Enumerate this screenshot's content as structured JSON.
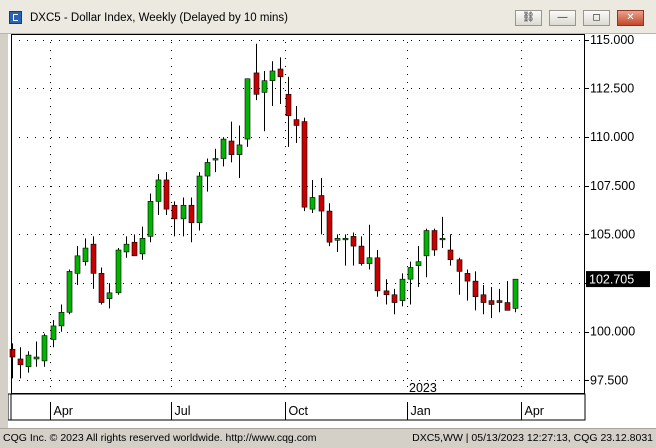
{
  "window": {
    "title": "DXC5 - Dollar Index, Weekly (Delayed by 10 mins)",
    "buttons": {
      "link": "⛓",
      "minimize": "—",
      "restore": "◻",
      "close": "✕"
    }
  },
  "status": {
    "left": "CQG Inc. © 2023 All rights reserved worldwide. http://www.cqg.com",
    "right": "DXC5,WW | 05/13/2023 12:27:13, CQG 23.12.8031"
  },
  "colors": {
    "up": "#00b400",
    "down": "#c80000",
    "doji": "#00b400",
    "grid": "#000000"
  },
  "chart_data": {
    "type": "candlestick",
    "symbol": "DXC5",
    "interval": "Weekly",
    "yticks": [
      97.5,
      100,
      102.5,
      105,
      107.5,
      110,
      112.5,
      115
    ],
    "ytick_labels": [
      "97.500",
      "100.000",
      "102.500",
      "105.000",
      "107.500",
      "110.000",
      "112.500",
      "115.000"
    ],
    "ylim": [
      96.8,
      115.3
    ],
    "xlabels": [
      {
        "index": 5,
        "label": "Apr"
      },
      {
        "index": 20,
        "label": "Jul"
      },
      {
        "index": 34,
        "label": "Oct"
      },
      {
        "index": 49,
        "label": "Jan"
      },
      {
        "index": 63,
        "label": "Apr"
      }
    ],
    "year_label": {
      "index": 49,
      "label": "2023"
    },
    "last_price": 102.705,
    "last_price_label": "102.705",
    "candles": [
      [
        99.1,
        99.4,
        97.6,
        98.7
      ],
      [
        98.6,
        99.2,
        97.6,
        98.3
      ],
      [
        98.2,
        99.0,
        97.9,
        98.8
      ],
      [
        98.6,
        99.5,
        98.2,
        98.7
      ],
      [
        98.5,
        99.9,
        98.2,
        99.8
      ],
      [
        99.6,
        100.6,
        99.2,
        100.3
      ],
      [
        100.3,
        101.4,
        100.0,
        101.0
      ],
      [
        101.0,
        103.2,
        100.9,
        103.1
      ],
      [
        103.0,
        104.4,
        102.4,
        103.9
      ],
      [
        103.6,
        104.8,
        103.4,
        104.3
      ],
      [
        104.5,
        104.9,
        102.2,
        103.0
      ],
      [
        103.0,
        103.3,
        101.4,
        101.5
      ],
      [
        101.7,
        102.5,
        101.2,
        102.0
      ],
      [
        102.0,
        104.3,
        101.9,
        104.2
      ],
      [
        104.1,
        104.9,
        103.8,
        104.5
      ],
      [
        104.6,
        105.0,
        103.9,
        103.9
      ],
      [
        104.0,
        105.4,
        103.7,
        104.8
      ],
      [
        104.9,
        107.1,
        104.6,
        106.7
      ],
      [
        106.7,
        108.1,
        106.0,
        107.8
      ],
      [
        107.8,
        108.2,
        106.0,
        106.3
      ],
      [
        106.5,
        106.7,
        104.9,
        105.8
      ],
      [
        105.8,
        106.9,
        104.9,
        106.5
      ],
      [
        106.5,
        106.9,
        104.6,
        105.6
      ],
      [
        105.6,
        108.2,
        105.2,
        108.0
      ],
      [
        108.0,
        108.9,
        107.2,
        108.7
      ],
      [
        108.9,
        109.4,
        108.2,
        108.9
      ],
      [
        108.9,
        110.0,
        108.5,
        109.9
      ],
      [
        109.8,
        110.8,
        108.7,
        109.1
      ],
      [
        109.1,
        110.6,
        107.9,
        109.6
      ],
      [
        109.9,
        112.9,
        109.5,
        113.0
      ],
      [
        113.3,
        114.8,
        111.9,
        112.2
      ],
      [
        112.3,
        113.4,
        110.3,
        112.9
      ],
      [
        112.9,
        113.9,
        111.6,
        113.4
      ],
      [
        113.5,
        114.1,
        111.7,
        113.1
      ],
      [
        112.2,
        113.1,
        109.5,
        111.1
      ],
      [
        110.9,
        111.6,
        109.7,
        110.6
      ],
      [
        110.8,
        111.0,
        106.2,
        106.4
      ],
      [
        106.3,
        107.8,
        106.1,
        106.9
      ],
      [
        107.0,
        107.9,
        105.0,
        106.2
      ],
      [
        106.2,
        106.6,
        104.4,
        104.6
      ],
      [
        104.7,
        105.0,
        104.1,
        104.8
      ],
      [
        104.8,
        105.0,
        103.4,
        104.8
      ],
      [
        104.9,
        105.1,
        103.4,
        104.4
      ],
      [
        104.4,
        104.9,
        103.4,
        103.5
      ],
      [
        103.5,
        105.5,
        103.2,
        103.8
      ],
      [
        103.8,
        104.2,
        101.8,
        102.1
      ],
      [
        102.1,
        102.7,
        101.4,
        101.9
      ],
      [
        101.9,
        102.2,
        100.9,
        101.5
      ],
      [
        101.6,
        103.0,
        101.3,
        102.7
      ],
      [
        102.7,
        103.6,
        101.4,
        103.3
      ],
      [
        103.4,
        104.4,
        102.3,
        103.6
      ],
      [
        103.9,
        105.3,
        102.8,
        105.2
      ],
      [
        105.2,
        105.3,
        103.9,
        104.2
      ],
      [
        104.8,
        105.9,
        104.3,
        104.8
      ],
      [
        104.2,
        105.0,
        103.4,
        103.7
      ],
      [
        103.7,
        103.8,
        101.9,
        103.1
      ],
      [
        103.0,
        103.2,
        101.6,
        102.6
      ],
      [
        102.6,
        103.1,
        101.1,
        101.8
      ],
      [
        101.9,
        102.4,
        100.9,
        101.5
      ],
      [
        101.6,
        102.3,
        100.7,
        101.4
      ],
      [
        101.6,
        102.2,
        101.0,
        101.5
      ],
      [
        101.5,
        102.6,
        101.1,
        101.1
      ],
      [
        101.2,
        102.7,
        101.0,
        102.7
      ]
    ]
  }
}
